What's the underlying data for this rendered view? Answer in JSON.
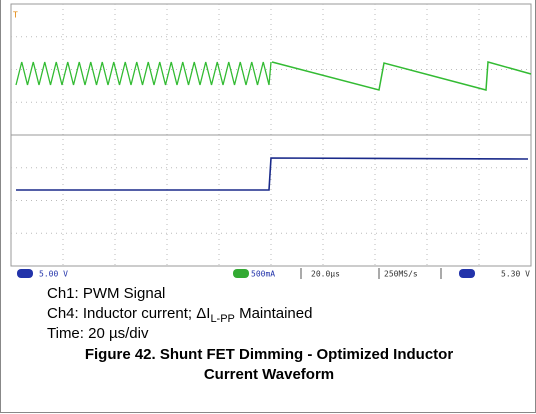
{
  "scope": {
    "ch1_scale": "5.00 V",
    "ch4_scale": "500mA",
    "timebase": "20.0µs",
    "sample_rate": "250MS/s",
    "trigger_level": "5.30 V"
  },
  "caption": {
    "line1": "Ch1: PWM Signal",
    "line2_prefix": "Ch4: Inductor current; ΔI",
    "line2_subscript": "L-PP",
    "line2_suffix": "Maintained",
    "line3": "Time: 20 µs/div"
  },
  "figure_title": {
    "line1": "Figure 42. Shunt FET Dimming - Optimized Inductor",
    "line2": "Current Waveform"
  }
}
